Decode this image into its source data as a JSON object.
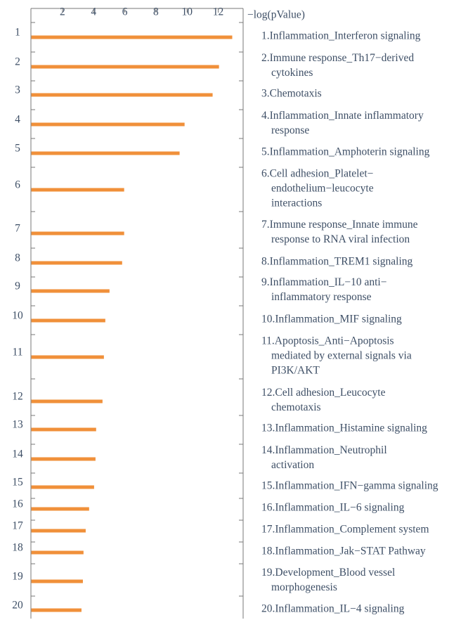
{
  "chart_data": {
    "type": "barh",
    "x_label": "−log(pValue)",
    "xlim": [
      0,
      13.6
    ],
    "xticks": [
      2,
      4,
      6,
      8,
      10,
      12
    ],
    "color": "#f0903a",
    "categories": [
      "1",
      "2",
      "3",
      "4",
      "5",
      "6",
      "7",
      "8",
      "9",
      "10",
      "11",
      "12",
      "13",
      "14",
      "15",
      "16",
      "17",
      "18",
      "19",
      "20"
    ],
    "values": [
      12.9,
      12.05,
      11.64,
      9.84,
      9.52,
      5.96,
      5.96,
      5.83,
      5.02,
      4.75,
      4.66,
      4.57,
      4.16,
      4.12,
      4.03,
      3.71,
      3.49,
      3.35,
      3.31,
      3.22
    ],
    "labels": [
      [
        "1.Inflammation_Interferon signaling"
      ],
      [
        "2.Immune response_Th17−derived",
        "cytokines"
      ],
      [
        "3.Chemotaxis"
      ],
      [
        "4.Inflammation_Innate inflammatory",
        "response"
      ],
      [
        "5.Inflammation_Amphoterin signaling"
      ],
      [
        "6.Cell adhesion_Platelet−",
        "endothelium−leucocyte",
        "interactions"
      ],
      [
        "7.Immune response_Innate immune",
        "response to RNA viral infection"
      ],
      [
        "8.Inflammation_TREM1 signaling"
      ],
      [
        "9.Inflammation_IL−10 anti−",
        "inflammatory response"
      ],
      [
        "10.Inflammation_MIF signaling"
      ],
      [
        "11.Apoptosis_Anti−Apoptosis",
        "mediated by external signals via",
        "PI3K/AKT"
      ],
      [
        "12.Cell adhesion_Leucocyte",
        "chemotaxis"
      ],
      [
        "13.Inflammation_Histamine signaling"
      ],
      [
        "14.Inflammation_Neutrophil",
        "activation"
      ],
      [
        "15.Inflammation_IFN−gamma signaling"
      ],
      [
        "16.Inflammation_IL−6 signaling"
      ],
      [
        "17.Inflammation_Complement system"
      ],
      [
        "18.Inflammation_Jak−STAT Pathway"
      ],
      [
        "19.Development_Blood vessel",
        "morphogenesis"
      ],
      [
        "20.Inflammation_IL−4 signaling"
      ]
    ]
  }
}
